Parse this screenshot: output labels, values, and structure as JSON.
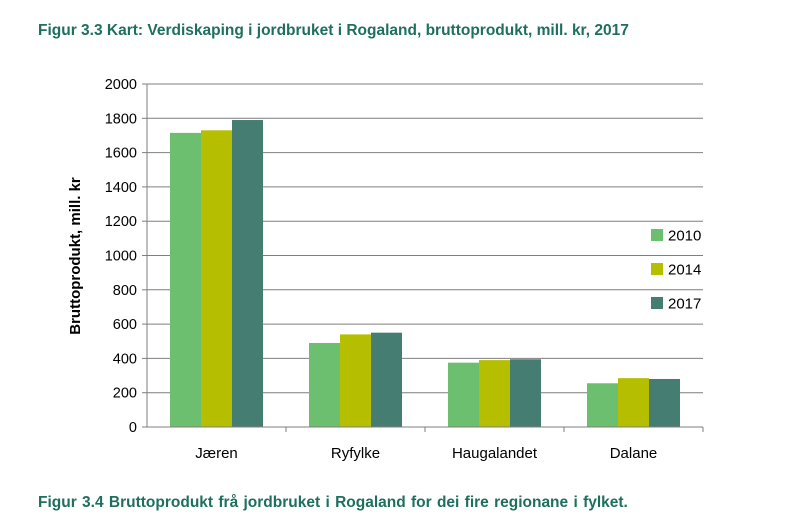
{
  "figure_title": "Figur 3.3 Kart: Verdiskaping i jordbruket i Rogaland, bruttoprodukt, mill. kr, 2017",
  "figure_caption": "Figur 3.4   Bruttoprodukt frå jordbruket i Rogaland for dei fire regionane i fylket.",
  "chart_data": {
    "type": "bar",
    "categories": [
      "Jæren",
      "Ryfylke",
      "Haugalandet",
      "Dalane"
    ],
    "series": [
      {
        "name": "2010",
        "color": "#6cbf6f",
        "values": [
          1715,
          490,
          375,
          255
        ]
      },
      {
        "name": "2014",
        "color": "#b5bf00",
        "values": [
          1730,
          540,
          390,
          285
        ]
      },
      {
        "name": "2017",
        "color": "#457d72",
        "values": [
          1790,
          550,
          395,
          280
        ]
      }
    ],
    "ylabel": "Bruttoprodukt, mill. kr",
    "ylim": [
      0,
      2000
    ],
    "yticks": [
      "0",
      "200",
      "400",
      "600",
      "800",
      "1000",
      "1200",
      "1400",
      "1600",
      "1800",
      "2000"
    ],
    "grid": true,
    "legend_position": "right"
  }
}
